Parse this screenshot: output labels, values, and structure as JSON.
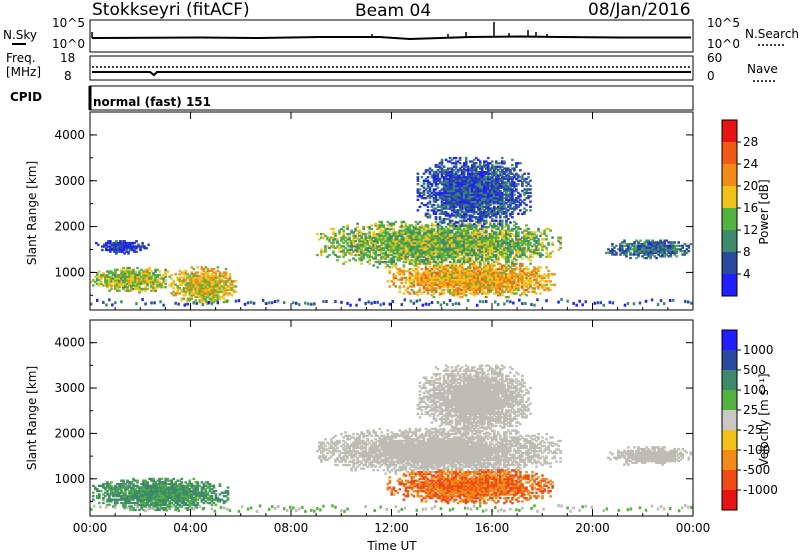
{
  "header": {
    "station": "Stokkseyri (fitACF)",
    "beam": "Beam 04",
    "date": "08/Jan/2016"
  },
  "status_panels": {
    "nsky_label": "N.Sky",
    "nsky_ticks": [
      "10^5",
      "10^0"
    ],
    "nsearch_label": "N.Search",
    "nsearch_ticks": [
      "10^5",
      "10^0"
    ],
    "freq_label_1": "Freq.",
    "freq_label_2": "[MHz]",
    "freq_ticks": [
      "18",
      "8"
    ],
    "nave_label": "Nave",
    "nave_ticks": [
      "60",
      "0"
    ],
    "cpid_label": "CPID",
    "cpid_value": "normal (fast)  151"
  },
  "colors": {
    "power_scale": [
      "#1f1fff",
      "#2a4aa0",
      "#3e8a6a",
      "#52b43e",
      "#f2c21a",
      "#f28a1a",
      "#f05a14",
      "#e81414"
    ],
    "velocity_scale": [
      "#e81414",
      "#f04a14",
      "#f28a1a",
      "#f2c21a",
      "#c8c8c0",
      "#52b43e",
      "#3e8a6a",
      "#2a4aa0",
      "#1f1fff"
    ],
    "ground_scatter": "#bdbdb5"
  },
  "chart_data": [
    {
      "type": "heatmap",
      "panel": "power",
      "xlabel": "Time UT",
      "ylabel": "Slant Range [km]",
      "x_ticks": [
        "00:00",
        "04:00",
        "08:00",
        "12:00",
        "16:00",
        "20:00",
        "00:00"
      ],
      "y_ticks": [
        "1000",
        "2000",
        "3000",
        "4000"
      ],
      "ylim": [
        180,
        4500
      ],
      "xlim_hours": [
        0,
        24
      ],
      "colorbar_label": "Power [dB]",
      "colorbar_ticks": [
        "4",
        "8",
        "12",
        "16",
        "20",
        "24",
        "28"
      ],
      "regions": [
        {
          "t0": 0.0,
          "t1": 3.3,
          "r0": 550,
          "r1": 1100,
          "level": 16
        },
        {
          "t0": 3.2,
          "t1": 5.8,
          "r0": 300,
          "r1": 1100,
          "level": 18
        },
        {
          "t0": 0.2,
          "t1": 2.3,
          "r0": 1400,
          "r1": 1700,
          "level": 4
        },
        {
          "t0": 9.0,
          "t1": 18.7,
          "r0": 1100,
          "r1": 2100,
          "level": 14
        },
        {
          "t0": 11.8,
          "t1": 18.5,
          "r0": 450,
          "r1": 1200,
          "level": 20
        },
        {
          "t0": 13.0,
          "t1": 17.5,
          "r0": 2000,
          "r1": 3500,
          "level": 6
        },
        {
          "t0": 20.5,
          "t1": 23.9,
          "r0": 1300,
          "r1": 1700,
          "level": 8
        }
      ]
    },
    {
      "type": "heatmap",
      "panel": "velocity",
      "xlabel": "Time UT",
      "ylabel": "Slant Range [km]",
      "x_ticks": [
        "00:00",
        "04:00",
        "08:00",
        "12:00",
        "16:00",
        "20:00",
        "00:00"
      ],
      "y_ticks": [
        "1000",
        "2000",
        "3000",
        "4000"
      ],
      "ylim": [
        180,
        4500
      ],
      "xlim_hours": [
        0,
        24
      ],
      "colorbar_label": "Velocity [m s⁻¹]",
      "colorbar_ticks": [
        "1000",
        "500",
        "100",
        "25",
        "-25",
        "-100",
        "-500",
        "-1000"
      ],
      "regions": [
        {
          "t0": 0.0,
          "t1": 5.5,
          "r0": 300,
          "r1": 1000,
          "velocity": 150
        },
        {
          "t0": 9.0,
          "t1": 18.7,
          "r0": 1100,
          "r1": 2100,
          "velocity": 0
        },
        {
          "t0": 11.8,
          "t1": 18.5,
          "r0": 450,
          "r1": 1200,
          "velocity": -300
        },
        {
          "t0": 13.0,
          "t1": 17.5,
          "r0": 2000,
          "r1": 3500,
          "velocity": 0
        },
        {
          "t0": 20.5,
          "t1": 23.9,
          "r0": 1300,
          "r1": 1700,
          "velocity": 0
        }
      ]
    }
  ]
}
